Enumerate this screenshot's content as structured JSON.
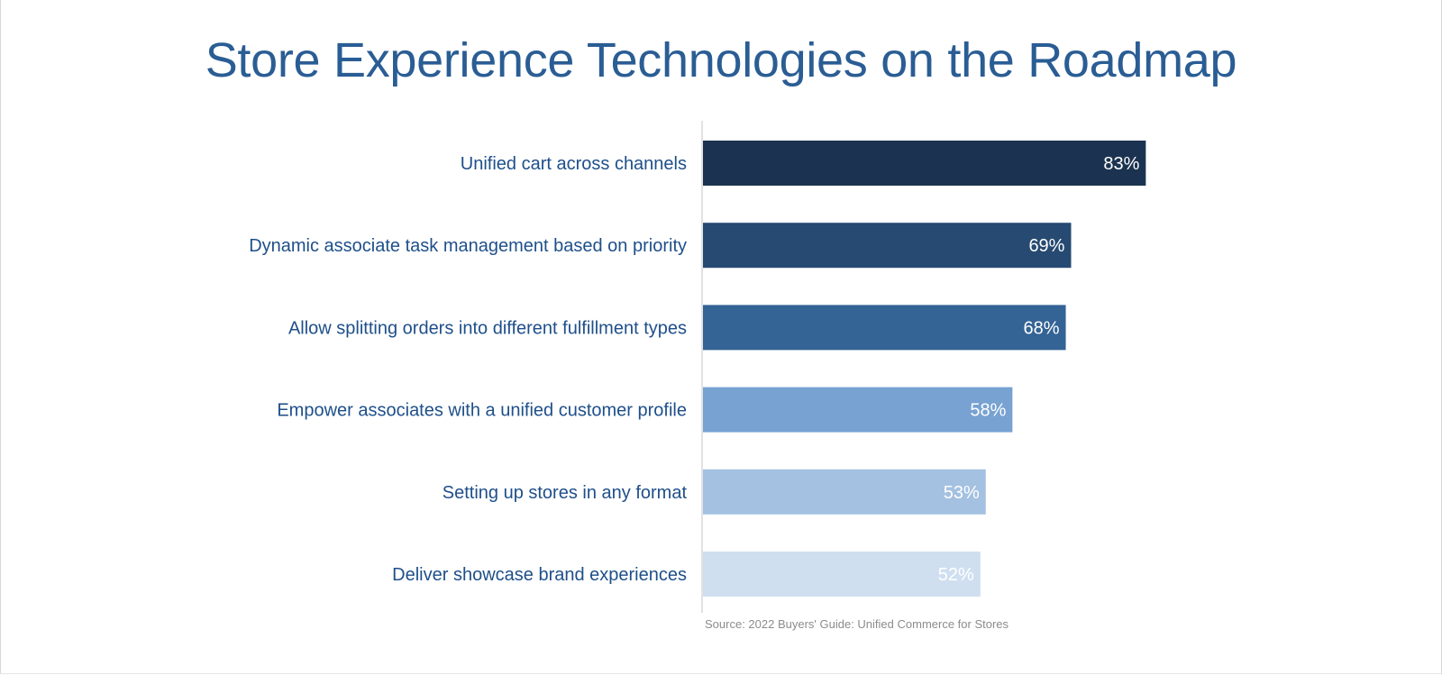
{
  "chart_data": {
    "type": "bar",
    "orientation": "horizontal",
    "title": "Store Experience Technologies on the Roadmap",
    "categories": [
      "Unified cart across channels",
      "Dynamic associate task management based on priority",
      "Allow splitting orders into different fulfillment types",
      "Empower associates with a unified customer profile",
      "Setting up stores in any format",
      "Deliver showcase brand experiences"
    ],
    "values": [
      83,
      69,
      68,
      58,
      53,
      52
    ],
    "value_labels": [
      "83%",
      "69%",
      "68%",
      "58%",
      "53%",
      "52%"
    ],
    "bar_colors": [
      "#1b3350",
      "#264a72",
      "#346395",
      "#77a2d2",
      "#a4c1e1",
      "#cfdff0"
    ],
    "xlim": [
      0,
      100
    ],
    "grid": false,
    "legend": "none",
    "source": "Source: 2022 Buyers' Guide: Unified Commerce for Stores"
  }
}
